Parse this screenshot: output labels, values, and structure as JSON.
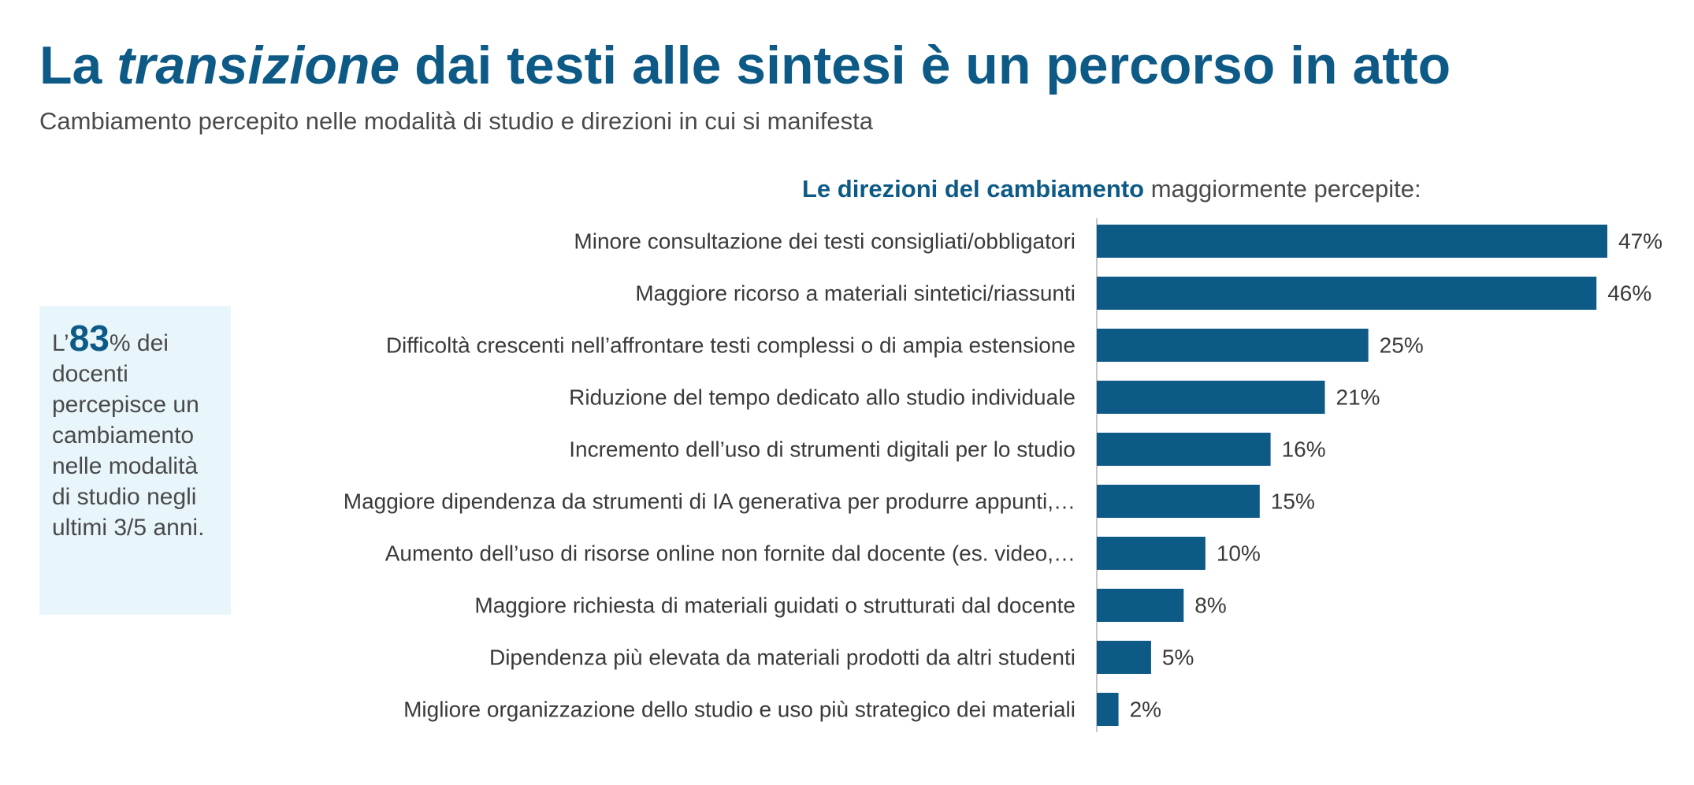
{
  "header": {
    "title_part1": "La ",
    "title_italic": "transizione",
    "title_part2": " dai testi alle sintesi è un percorso in atto",
    "subtitle": "Cambiamento percepito nelle modalità di studio e direzioni in cui si manifesta"
  },
  "callout": {
    "prefix": "L’",
    "highlight": "83",
    "suffix": "% dei docenti percepisce un cambiamento nelle modalità di studio negli ultimi 3/5 anni."
  },
  "chart_heading": {
    "strong": "Le direzioni del cambiamento",
    "rest": " maggiormente percepite:"
  },
  "colors": {
    "brand": "#0d5a86",
    "callout_bg": "#e8f6fb",
    "text": "#3a3a3a"
  },
  "chart_data": {
    "type": "bar",
    "orientation": "horizontal",
    "title": "Le direzioni del cambiamento maggiormente percepite:",
    "xlabel": "",
    "ylabel": "",
    "xlim": [
      0,
      47
    ],
    "grid": false,
    "legend": "none",
    "categories": [
      "Minore consultazione dei testi consigliati/obbligatori",
      "Maggiore ricorso a materiali sintetici/riassunti",
      "Difficoltà crescenti nell’affrontare testi complessi o di ampia estensione",
      "Riduzione del tempo dedicato allo studio individuale",
      "Incremento dell’uso di strumenti digitali per lo studio",
      "Maggiore dipendenza da strumenti di IA generativa per produrre appunti,…",
      "Aumento dell’uso di risorse online non fornite dal docente (es. video,…",
      "Maggiore richiesta di materiali guidati o strutturati dal docente",
      "Dipendenza più elevata da materiali prodotti da altri studenti",
      "Migliore organizzazione dello studio e uso più strategico dei materiali"
    ],
    "values": [
      47,
      46,
      25,
      21,
      16,
      15,
      10,
      8,
      5,
      2
    ],
    "value_labels": [
      "47%",
      "46%",
      "25%",
      "21%",
      "16%",
      "15%",
      "10%",
      "8%",
      "5%",
      "2%"
    ]
  }
}
